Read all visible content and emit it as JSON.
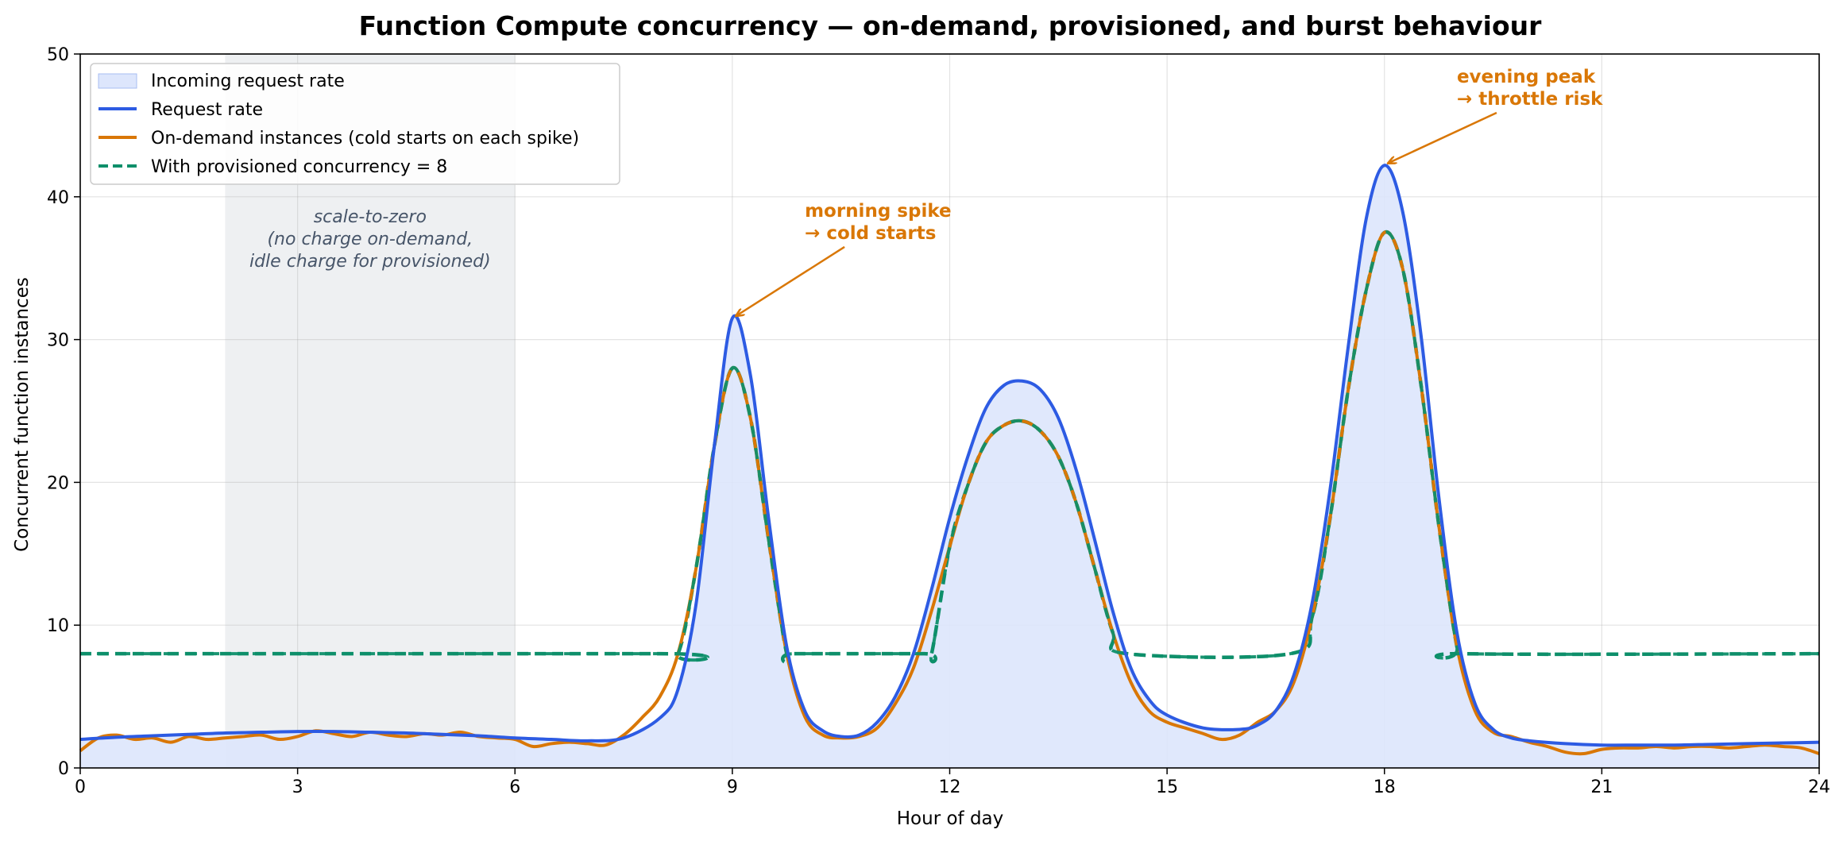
{
  "chart_data": {
    "type": "area",
    "title": "Function Compute concurrency — on-demand, provisioned, and burst behaviour",
    "xlabel": "Hour of day",
    "ylabel": "Concurrent function instances",
    "xlim": [
      0,
      24
    ],
    "ylim": [
      0,
      50
    ],
    "x_ticks": [
      0,
      3,
      6,
      9,
      12,
      15,
      18,
      21,
      24
    ],
    "y_ticks": [
      0,
      10,
      20,
      30,
      40,
      50
    ],
    "grid": true,
    "legend_position": "top-left",
    "colors": {
      "fill": "#dde6fc",
      "request": "#2d5be3",
      "ondemand": "#d97706",
      "provisioned": "#0e8f6a",
      "shade": "#e3e6ea",
      "annotation": "#d97706"
    },
    "legend": [
      "Incoming request rate",
      "Request rate",
      "On-demand instances (cold starts on each spike)",
      "With provisioned concurrency = 8"
    ],
    "shaded_region": {
      "x_start": 2,
      "x_end": 6,
      "label_lines": [
        "scale-to-zero",
        "(no charge on-demand,",
        "idle charge for provisioned)"
      ]
    },
    "provisioned_concurrency": 8,
    "series": [
      {
        "name": "Request rate",
        "x": [
          0,
          0.5,
          1,
          1.5,
          2,
          2.5,
          3,
          3.5,
          4,
          4.5,
          5,
          5.5,
          6,
          6.5,
          7,
          7.5,
          8,
          8.25,
          8.5,
          8.75,
          9,
          9.25,
          9.5,
          9.75,
          10,
          10.25,
          10.5,
          10.75,
          11,
          11.25,
          11.5,
          11.75,
          12,
          12.25,
          12.5,
          12.75,
          13,
          13.25,
          13.5,
          13.75,
          14,
          14.25,
          14.5,
          14.75,
          15,
          15.5,
          16,
          16.25,
          16.5,
          16.75,
          17,
          17.25,
          17.5,
          17.75,
          18,
          18.25,
          18.5,
          18.75,
          19,
          19.25,
          19.5,
          19.75,
          20,
          20.5,
          21,
          21.5,
          22,
          22.5,
          23,
          23.5,
          24
        ],
        "values": [
          2.0,
          2.15,
          2.25,
          2.35,
          2.45,
          2.5,
          2.55,
          2.55,
          2.5,
          2.45,
          2.35,
          2.25,
          2.1,
          2.0,
          1.9,
          2.1,
          3.5,
          5.5,
          11.5,
          22.5,
          31.5,
          27.5,
          17.5,
          8.5,
          4.0,
          2.6,
          2.2,
          2.3,
          3.2,
          5.0,
          8.0,
          12.5,
          17.5,
          21.8,
          25.2,
          26.8,
          27.1,
          26.5,
          24.5,
          20.8,
          16.0,
          11.0,
          7.0,
          4.8,
          3.7,
          2.8,
          2.7,
          3.0,
          4.0,
          6.5,
          11.5,
          19.5,
          29.5,
          38.5,
          42.2,
          39.0,
          30.5,
          19.0,
          9.5,
          4.5,
          2.7,
          2.1,
          1.9,
          1.7,
          1.6,
          1.6,
          1.6,
          1.65,
          1.7,
          1.75,
          1.8
        ]
      },
      {
        "name": "On-demand instances (cold starts on each spike)",
        "x": [
          0,
          0.25,
          0.5,
          0.75,
          1,
          1.25,
          1.5,
          1.75,
          2,
          2.25,
          2.5,
          2.75,
          3,
          3.25,
          3.5,
          3.75,
          4,
          4.25,
          4.5,
          4.75,
          5,
          5.25,
          5.5,
          5.75,
          6,
          6.25,
          6.5,
          6.75,
          7,
          7.25,
          7.5,
          7.75,
          8,
          8.25,
          8.5,
          8.75,
          9,
          9.25,
          9.5,
          9.75,
          10,
          10.25,
          10.5,
          10.75,
          11,
          11.25,
          11.5,
          11.75,
          12,
          12.25,
          12.5,
          12.75,
          13,
          13.25,
          13.5,
          13.75,
          14,
          14.25,
          14.5,
          14.75,
          15,
          15.25,
          15.5,
          15.75,
          16,
          16.25,
          16.5,
          16.75,
          17,
          17.25,
          17.5,
          17.75,
          18,
          18.25,
          18.5,
          18.75,
          19,
          19.25,
          19.5,
          19.75,
          20,
          20.25,
          20.5,
          20.75,
          21,
          21.25,
          21.5,
          21.75,
          22,
          22.25,
          22.5,
          22.75,
          23,
          23.25,
          23.5,
          23.75,
          24
        ],
        "values": [
          1.2,
          2.1,
          2.3,
          2.0,
          2.1,
          1.8,
          2.2,
          2.0,
          2.1,
          2.2,
          2.3,
          2.0,
          2.2,
          2.6,
          2.4,
          2.2,
          2.5,
          2.3,
          2.2,
          2.4,
          2.3,
          2.5,
          2.2,
          2.1,
          2.0,
          1.5,
          1.7,
          1.8,
          1.7,
          1.6,
          2.3,
          3.5,
          5.0,
          8.0,
          14.0,
          22.5,
          28.0,
          24.5,
          16.0,
          8.0,
          3.6,
          2.3,
          2.1,
          2.2,
          2.8,
          4.5,
          7.0,
          11.0,
          15.5,
          19.8,
          22.8,
          24.0,
          24.3,
          23.6,
          21.8,
          18.5,
          14.0,
          9.5,
          6.0,
          4.0,
          3.2,
          2.8,
          2.4,
          2.0,
          2.3,
          3.2,
          4.0,
          6.0,
          10.5,
          17.5,
          26.5,
          33.5,
          37.5,
          35.0,
          27.0,
          17.0,
          8.5,
          4.0,
          2.5,
          2.2,
          1.8,
          1.5,
          1.1,
          1.0,
          1.3,
          1.4,
          1.4,
          1.5,
          1.4,
          1.5,
          1.5,
          1.4,
          1.5,
          1.6,
          1.5,
          1.4,
          1.0
        ]
      },
      {
        "name": "With provisioned concurrency = 8",
        "x": [
          0,
          8,
          8.25,
          8.5,
          8.75,
          9,
          9.25,
          9.5,
          9.75,
          9.85,
          11.65,
          11.75,
          12,
          12.25,
          12.5,
          12.75,
          13,
          13.25,
          13.5,
          13.75,
          14,
          14.25,
          14.45,
          16.7,
          17,
          17.25,
          17.5,
          17.75,
          18,
          18.25,
          18.5,
          18.75,
          19,
          19.1,
          24
        ],
        "values": [
          8,
          8,
          8,
          14.0,
          22.5,
          28.0,
          24.5,
          16.0,
          8.0,
          8,
          8,
          8,
          15.5,
          19.8,
          22.8,
          24.0,
          24.3,
          23.6,
          21.8,
          18.5,
          14.0,
          9.5,
          8,
          8,
          10.5,
          17.5,
          26.5,
          33.5,
          37.5,
          35.0,
          27.0,
          17.0,
          8.5,
          8,
          8
        ]
      }
    ],
    "annotations": [
      {
        "lines": [
          "morning spike",
          "→ cold starts"
        ],
        "target_x": 9.0,
        "target_y": 31.5
      },
      {
        "lines": [
          "evening peak",
          "→ throttle risk"
        ],
        "target_x": 18.0,
        "target_y": 42.2
      }
    ]
  }
}
